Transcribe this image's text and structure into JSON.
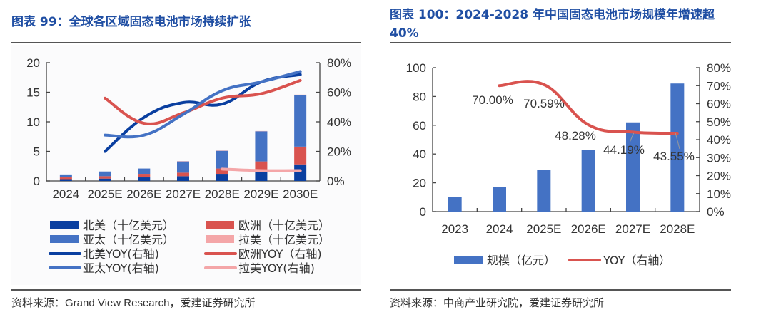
{
  "left": {
    "title": "图表 99：全球各区域固态电池市场持续扩张",
    "source": "资料来源：Grand View Research，爱建证券研究所"
  },
  "right": {
    "title_line1": "图表 100：2024-2028 年中国固态电池市场规模年增速超",
    "title_line2": "40%",
    "source": "资料来源：中商产业研究院，爱建证券研究所"
  },
  "colors": {
    "north_america": "#0a3fa0",
    "asia_pacific": "#4472c4",
    "europe": "#d9534f",
    "latin_america": "#f4a6a8",
    "title_blue": "#1f4ea3"
  },
  "chart_data": [
    {
      "type": "bar",
      "stacked": true,
      "title": "全球各区域固态电池市场持续扩张",
      "categories": [
        "2024",
        "2025E",
        "2026E",
        "2027E",
        "2028E",
        "2029E",
        "2030E"
      ],
      "ylim": [
        0,
        20
      ],
      "yticks": [
        "0",
        "5",
        "10",
        "15",
        "20"
      ],
      "y2lim": [
        0,
        80
      ],
      "y2ticks": [
        "0%",
        "20%",
        "40%",
        "60%",
        "80%"
      ],
      "series": [
        {
          "name": "北美（十亿美元）",
          "kind": "bar",
          "color": "#0a3fa0",
          "values": [
            0.3,
            0.4,
            0.6,
            0.8,
            1.2,
            1.7,
            2.8
          ]
        },
        {
          "name": "欧洲（十亿美元）",
          "kind": "bar",
          "color": "#d9534f",
          "values": [
            0.3,
            0.4,
            0.6,
            0.6,
            0.9,
            1.6,
            3.0
          ]
        },
        {
          "name": "亚太（十亿美元）",
          "kind": "bar",
          "color": "#4472c4",
          "values": [
            0.5,
            0.8,
            0.9,
            1.9,
            3.0,
            5.1,
            8.7
          ]
        },
        {
          "name": "拉美（十亿美元）",
          "kind": "bar",
          "color": "#f4a6a8",
          "values": [
            0.0,
            0.0,
            0.0,
            0.05,
            0.05,
            0.05,
            0.1
          ]
        },
        {
          "name": "北美YOY(右轴)",
          "kind": "line",
          "color": "#0a3fa0",
          "values": [
            null,
            20,
            43,
            53,
            52,
            67,
            72
          ]
        },
        {
          "name": "欧洲YOY（右轴)",
          "kind": "line",
          "color": "#d9534f",
          "values": [
            null,
            56,
            39,
            46,
            56,
            59,
            68
          ]
        },
        {
          "name": "亚太YOY(右轴)",
          "kind": "line",
          "color": "#4472c4",
          "values": [
            null,
            31,
            31,
            45,
            61,
            67,
            74
          ]
        },
        {
          "name": "拉美YOY(右轴)",
          "kind": "line",
          "color": "#f4a6a8",
          "values": [
            null,
            null,
            null,
            null,
            8,
            7,
            7
          ]
        }
      ],
      "legend": [
        "北美（十亿美元）",
        "欧洲（十亿美元）",
        "亚太（十亿美元）",
        "拉美（十亿美元）",
        "北美YOY(右轴)",
        "欧洲YOY（右轴)",
        "亚太YOY(右轴)",
        "拉美YOY(右轴)"
      ],
      "legend_position": "bottom"
    },
    {
      "type": "bar",
      "title": "2024-2028 年中国固态电池市场规模年增速超40%",
      "categories": [
        "2023",
        "2024",
        "2025E",
        "2026E",
        "2027E",
        "2028E"
      ],
      "ylim": [
        0,
        100
      ],
      "yticks": [
        "0",
        "20",
        "40",
        "60",
        "80",
        "100"
      ],
      "y2lim": [
        0,
        80
      ],
      "y2ticks": [
        "0%",
        "10%",
        "20%",
        "30%",
        "40%",
        "50%",
        "60%",
        "70%",
        "80%"
      ],
      "series": [
        {
          "name": "规模（亿元）",
          "kind": "bar",
          "color": "#4472c4",
          "values": [
            10,
            17,
            29,
            43,
            62,
            89
          ]
        },
        {
          "name": "YOY（右轴）",
          "kind": "line",
          "color": "#d9534f",
          "values": [
            null,
            70.0,
            70.59,
            48.28,
            44.19,
            43.55
          ]
        }
      ],
      "data_labels": [
        "70.00%",
        "70.59%",
        "48.28%",
        "44.19%",
        "43.55%"
      ],
      "legend": [
        "规模（亿元）",
        "YOY（右轴）"
      ],
      "legend_position": "bottom"
    }
  ]
}
